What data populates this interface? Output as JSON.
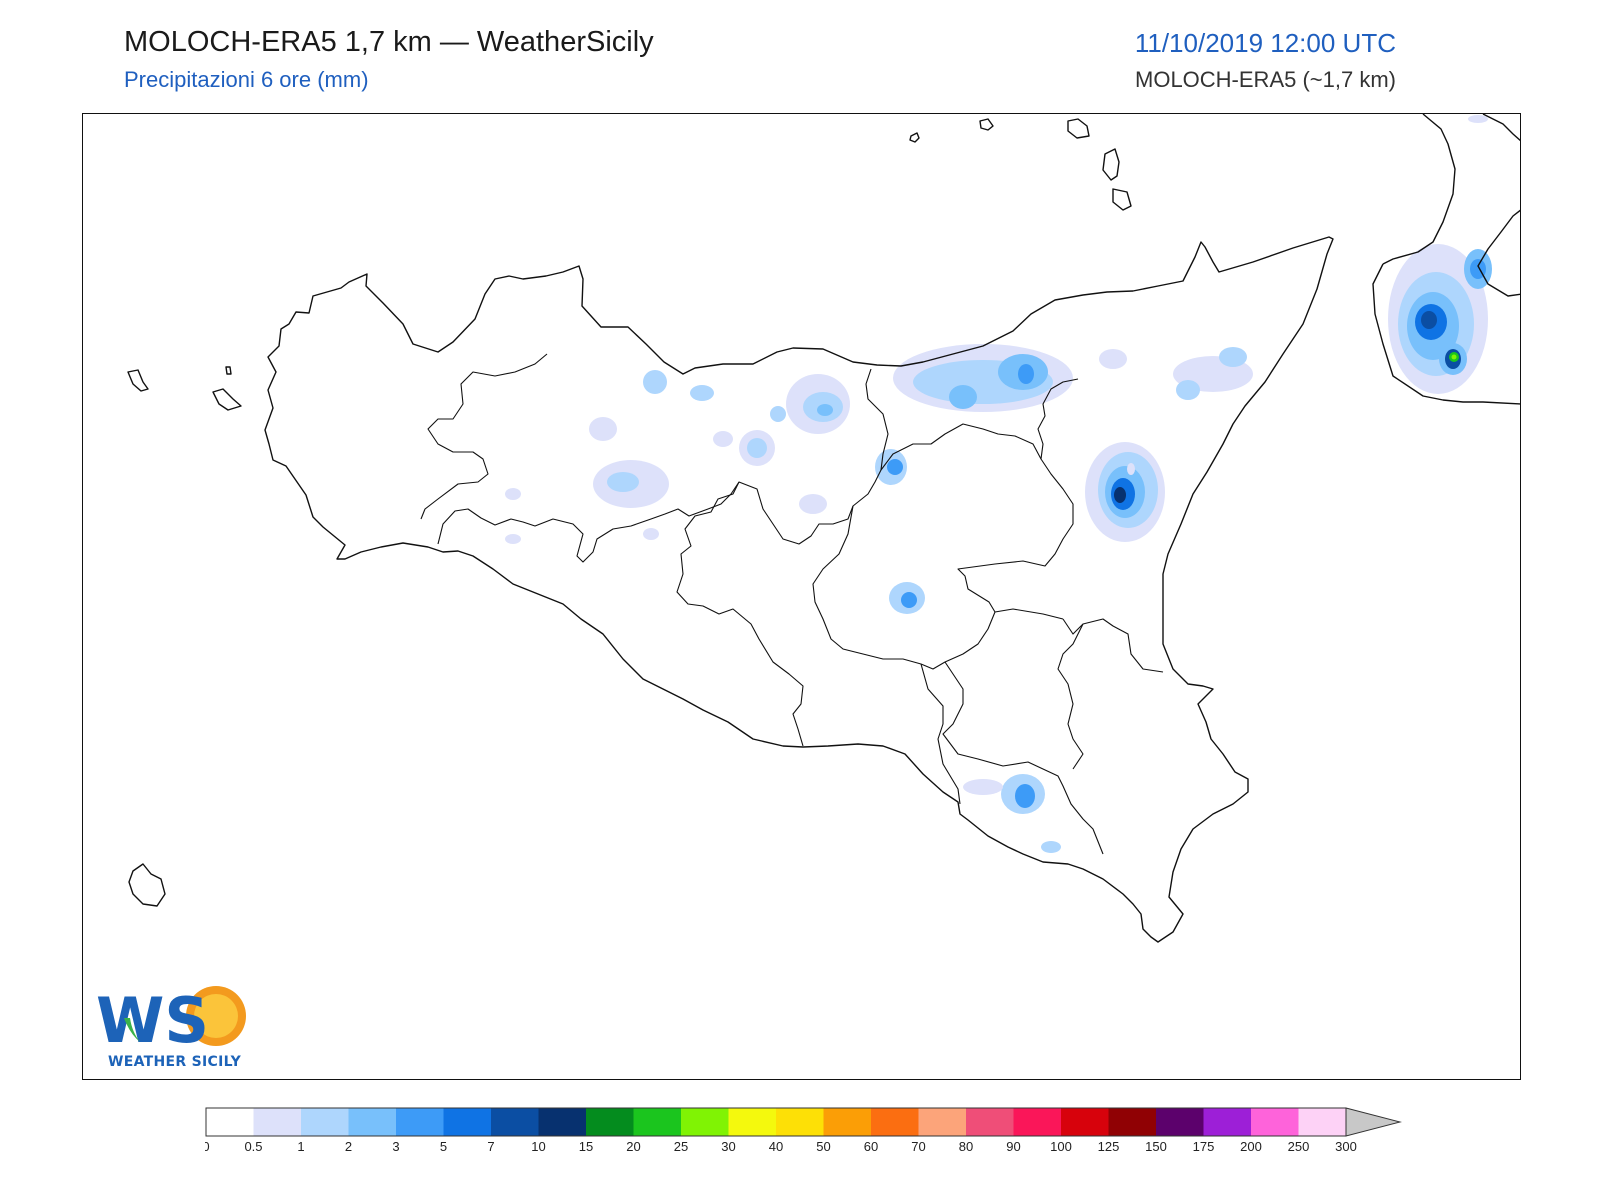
{
  "header": {
    "title": "MOLOCH-ERA5 1,7 km — WeatherSicily",
    "subtitle": "Precipitazioni 6 ore (mm)",
    "datetime": "11/10/2019 12:00 UTC",
    "model": "MOLOCH-ERA5 (~1,7 km)"
  },
  "logo": {
    "text": "WEATHER SICILY",
    "mark": "WS"
  },
  "legend": {
    "ticks": [
      "0",
      "0.5",
      "1",
      "2",
      "3",
      "5",
      "7",
      "10",
      "15",
      "20",
      "25",
      "30",
      "40",
      "50",
      "60",
      "70",
      "80",
      "90",
      "100",
      "125",
      "150",
      "175",
      "200",
      "250",
      "300"
    ],
    "colors": [
      "#ffffff",
      "#dde1fa",
      "#aed6fd",
      "#78c0fb",
      "#3d9bf7",
      "#0f73e4",
      "#0b4ea3",
      "#07316f",
      "#048c1e",
      "#1bc51e",
      "#80f304",
      "#f4f90d",
      "#fde006",
      "#fb9e06",
      "#fb6e11",
      "#fca47a",
      "#ef4e78",
      "#fa1659",
      "#d7020c",
      "#900104",
      "#5c016c",
      "#9d1fd7",
      "#fe63da",
      "#fdd2f6"
    ],
    "overflow_color": "#c8c8c8"
  },
  "precip_cells": [
    {
      "level": 4,
      "color": "#3d9bf7"
    },
    {
      "level": 8,
      "color": "#048c1e"
    }
  ]
}
